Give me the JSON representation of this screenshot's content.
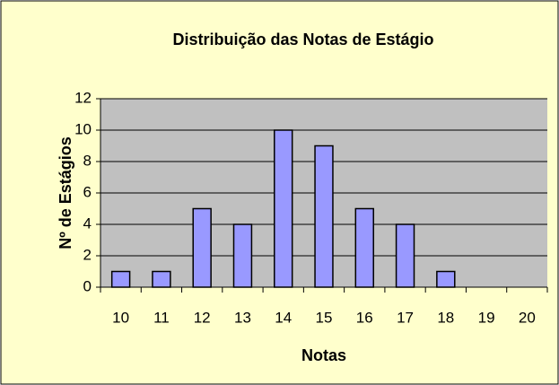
{
  "chart_data": {
    "type": "bar",
    "title": "Distribuição das Notas de Estágio",
    "x_label": "Notas",
    "y_label": "Nº de Estágios",
    "categories": [
      "10",
      "11",
      "12",
      "13",
      "14",
      "15",
      "16",
      "17",
      "18",
      "19",
      "20"
    ],
    "values": [
      1,
      1,
      5,
      4,
      10,
      9,
      5,
      4,
      1,
      0,
      0
    ],
    "color": "#9999ff",
    "plot_background": "#c0c0c0",
    "background": "#ffffcc",
    "ylim": [
      0,
      12
    ],
    "yticks": [
      0,
      2,
      4,
      6,
      8,
      10,
      12
    ],
    "grid": true
  }
}
